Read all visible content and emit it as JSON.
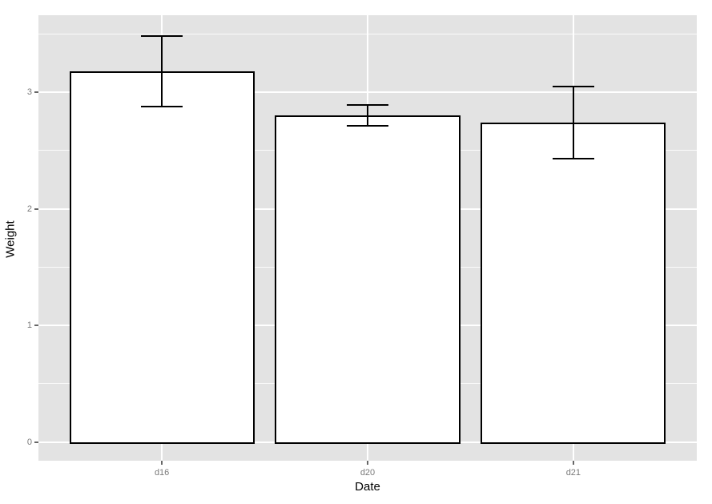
{
  "figure": {
    "background_color": "#ffffff",
    "panel_background_color": "#e3e3e3",
    "grid_color": "#ffffff",
    "bar_fill_color": "#ffffff",
    "bar_stroke_color": "#000000",
    "errorbar_color": "#000000",
    "tick_label_color": "#7a7a7a",
    "axis_title_color": "#000000"
  },
  "chart_data": {
    "type": "bar",
    "title": "",
    "xlabel": "Date",
    "ylabel": "Weight",
    "categories": [
      "d16",
      "d20",
      "d21"
    ],
    "values": [
      3.18,
      2.8,
      2.74
    ],
    "error_low": [
      2.88,
      2.71,
      2.43
    ],
    "error_high": [
      3.48,
      2.89,
      3.05
    ],
    "ytick_labels": [
      "0",
      "1",
      "2",
      "3"
    ],
    "yticks": [
      0,
      1,
      2,
      3
    ],
    "yticks_minor": [
      0.5,
      1.5,
      2.5,
      3.5
    ],
    "ylim": [
      -0.16,
      3.66
    ],
    "xlim": [
      0.4,
      3.6
    ],
    "bar_width": 0.9,
    "errorbar_cap_width": 0.2,
    "grid": true,
    "legend": false
  }
}
